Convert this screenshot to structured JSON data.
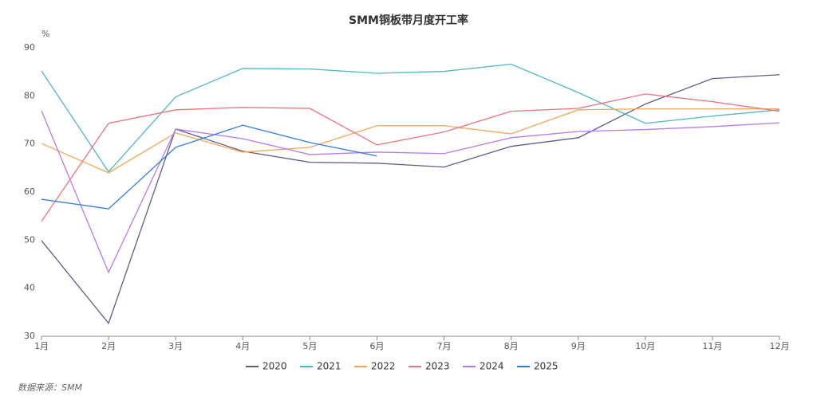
{
  "chart_data": {
    "type": "line",
    "title": "SMM铜板带月度开工率",
    "y_label": "%",
    "source": "数据来源：SMM",
    "categories": [
      "1月",
      "2月",
      "3月",
      "4月",
      "5月",
      "6月",
      "7月",
      "8月",
      "9月",
      "10月",
      "11月",
      "12月"
    ],
    "ylim": [
      30,
      90
    ],
    "yticks": [
      30,
      40,
      50,
      60,
      70,
      80,
      90
    ],
    "grid": false,
    "legend": "bottom",
    "series": [
      {
        "name": "2020",
        "color": "#5b5f86",
        "values": [
          49.9,
          32.7,
          73.1,
          68.5,
          66.2,
          66.0,
          65.2,
          69.5,
          71.3,
          78.3,
          83.6,
          84.4
        ]
      },
      {
        "name": "2021",
        "color": "#4fb8c6",
        "values": [
          85.2,
          64.2,
          79.8,
          85.7,
          85.6,
          84.7,
          85.1,
          86.6,
          80.7,
          74.3,
          75.8,
          77.1
        ]
      },
      {
        "name": "2022",
        "color": "#f3a65a",
        "values": [
          70.1,
          64.0,
          72.3,
          68.3,
          69.3,
          73.8,
          73.8,
          72.1,
          77.1,
          77.3,
          77.3,
          77.3
        ]
      },
      {
        "name": "2023",
        "color": "#f0717a",
        "values": [
          53.9,
          74.3,
          77.1,
          77.6,
          77.4,
          69.8,
          72.5,
          76.8,
          77.4,
          80.4,
          78.8,
          76.8
        ]
      },
      {
        "name": "2024",
        "color": "#b77af0",
        "values": [
          76.9,
          43.3,
          73.1,
          71.1,
          67.8,
          68.3,
          68.0,
          71.3,
          72.6,
          73.0,
          73.6,
          74.4
        ]
      },
      {
        "name": "2025",
        "color": "#2f7de1",
        "values": [
          58.5,
          56.5,
          69.3,
          73.9,
          70.3,
          67.5,
          null,
          null,
          null,
          null,
          null,
          null
        ]
      }
    ]
  }
}
